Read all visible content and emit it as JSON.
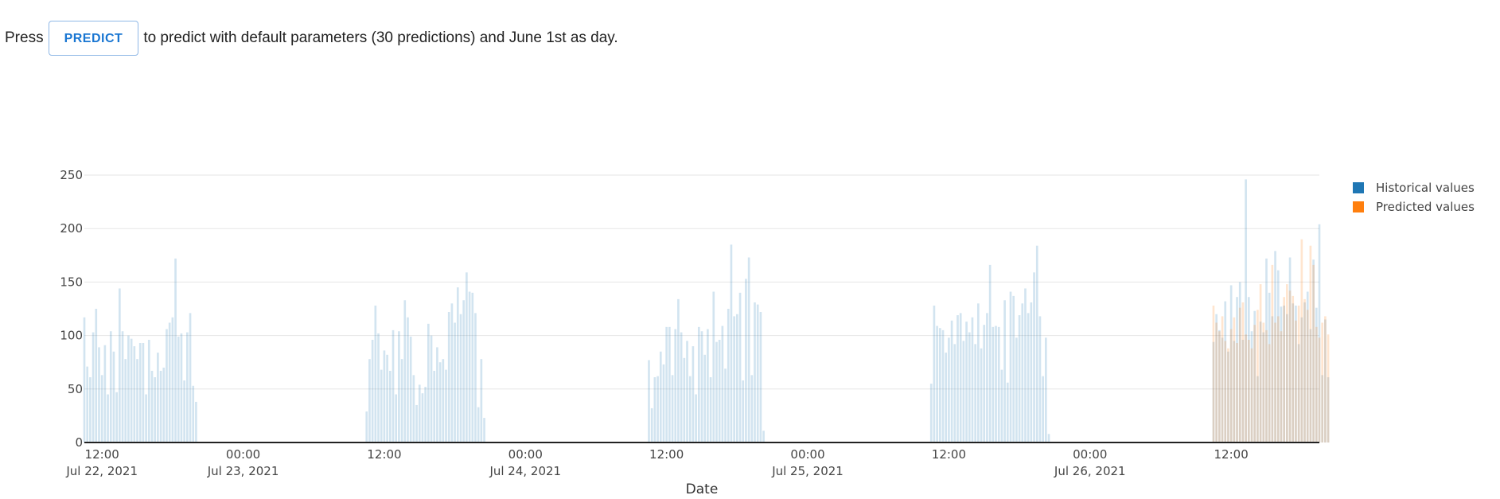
{
  "intro": {
    "prefix": "Press",
    "button_label": "PREDICT",
    "suffix": "to predict with default parameters (30 predictions) and June 1st as day."
  },
  "colors": {
    "historical": "#1f77b4",
    "predicted": "#ff7f0e",
    "grid": "#e6e6e6",
    "axis": "#222222"
  },
  "chart_data": {
    "type": "bar",
    "title": "",
    "xlabel": "Date",
    "ylabel": "",
    "ylim": [
      0,
      250
    ],
    "yticks": [
      0,
      50,
      100,
      150,
      200,
      250
    ],
    "xlim_hours": [
      -1.5,
      103.5
    ],
    "x_unit": "hours since Jul 22, 2021 12:00",
    "xticks": [
      {
        "hour": 0,
        "time": "12:00",
        "date": "Jul 22, 2021"
      },
      {
        "hour": 12,
        "time": "00:00",
        "date": "Jul 23, 2021"
      },
      {
        "hour": 24,
        "time": "12:00",
        "date": ""
      },
      {
        "hour": 36,
        "time": "00:00",
        "date": "Jul 24, 2021"
      },
      {
        "hour": 48,
        "time": "12:00",
        "date": ""
      },
      {
        "hour": 60,
        "time": "00:00",
        "date": "Jul 25, 2021"
      },
      {
        "hour": 72,
        "time": "12:00",
        "date": ""
      },
      {
        "hour": 84,
        "time": "00:00",
        "date": "Jul 26, 2021"
      },
      {
        "hour": 96,
        "time": "12:00",
        "date": ""
      }
    ],
    "bar_step_hours": 0.25,
    "legend_position": "top-right",
    "series": [
      {
        "name": "Historical values",
        "color": "#1f77b4",
        "opacity": 0.2,
        "segments": [
          {
            "start_hour": -1.5,
            "values": [
              117,
              71,
              61,
              103,
              125,
              89,
              63,
              91,
              45,
              104,
              85,
              47,
              144,
              104,
              78,
              100,
              97,
              90,
              78,
              93,
              93,
              45,
              96,
              67,
              61,
              84,
              67,
              70,
              106,
              112,
              117,
              172,
              99,
              102,
              58,
              103,
              121,
              53,
              38
            ]
          },
          {
            "start_hour": 22.5,
            "values": [
              29,
              78,
              96,
              128,
              102,
              68,
              86,
              82,
              67,
              105,
              45,
              104,
              78,
              133,
              117,
              99,
              63,
              35,
              54,
              46,
              52,
              111,
              100,
              67,
              89,
              75,
              78,
              68,
              122,
              130,
              112,
              145,
              120,
              133,
              159,
              141,
              140,
              121,
              33,
              78,
              23
            ]
          },
          {
            "start_hour": 46.5,
            "values": [
              77,
              32,
              61,
              62,
              85,
              73,
              108,
              108,
              63,
              106,
              134,
              103,
              79,
              95,
              62,
              90,
              45,
              108,
              104,
              82,
              106,
              61,
              141,
              94,
              96,
              109,
              69,
              125,
              185,
              118,
              120,
              140,
              58,
              153,
              173,
              63,
              131,
              129,
              122,
              11
            ]
          },
          {
            "start_hour": 70.5,
            "values": [
              55,
              128,
              109,
              107,
              105,
              84,
              98,
              114,
              92,
              119,
              121,
              95,
              113,
              103,
              117,
              92,
              130,
              88,
              110,
              121,
              166,
              108,
              109,
              108,
              68,
              133,
              56,
              141,
              137,
              98,
              119,
              130,
              144,
              121,
              131,
              159,
              184,
              118,
              62,
              98,
              8
            ]
          },
          {
            "start_hour": 94.5,
            "values": [
              94,
              120,
              105,
              98,
              132,
              85,
              147,
              95,
              136,
              150,
              96,
              246,
              136,
              104,
              123,
              62,
              113,
              103,
              172,
              140,
              118,
              179,
              161,
              127,
              128,
              120,
              173,
              130,
              128,
              92,
              117,
              131,
              141,
              106,
              171,
              126,
              204,
              63,
              115,
              61
            ]
          }
        ]
      },
      {
        "name": "Predicted values",
        "color": "#ff7f0e",
        "opacity": 0.2,
        "segments": [
          {
            "start_hour": 94.5,
            "values": [
              128,
              112,
              104,
              118,
              95,
              88,
              106,
              117,
              93,
              126,
              131,
              101,
              96,
              88,
              110,
              124,
              148,
              112,
              105,
              92,
              166,
              112,
              118,
              104,
              136,
              148,
              142,
              137,
              114,
              128,
              190,
              134,
              124,
              184,
              166,
              108,
              98,
              112,
              118,
              101
            ]
          }
        ]
      }
    ]
  }
}
